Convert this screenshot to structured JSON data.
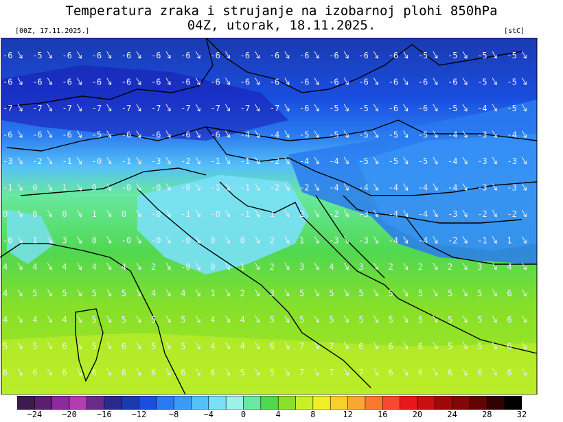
{
  "title": {
    "line1": "Temperatura zraka i strujanje na izobarnoj plohi 850hPa",
    "line2": "04Z, utorak, 18.11.2025."
  },
  "run_label": "[00Z, 17.11.2025.]",
  "unit_label": "[stC]",
  "legend": {
    "colors": [
      "#3c1a4e",
      "#5a1f6e",
      "#8a2a9e",
      "#b03cb0",
      "#6a2a8a",
      "#2a2a8e",
      "#1a3ab0",
      "#1a4ee0",
      "#2a7af0",
      "#3a9af8",
      "#56c0f8",
      "#7ae0f8",
      "#a0f0e8",
      "#68e8a0",
      "#50d850",
      "#88e028",
      "#c8f028",
      "#f0f028",
      "#f8d028",
      "#f8a830",
      "#f87830",
      "#f84830",
      "#e81818",
      "#c81010",
      "#a00808",
      "#800808",
      "#600404",
      "#300202",
      "#000000"
    ],
    "ticks": [
      "−24",
      "−20",
      "−16",
      "−12",
      "−8",
      "−4",
      "0",
      "4",
      "8",
      "12",
      "16",
      "20",
      "24",
      "28",
      "32"
    ]
  },
  "map": {
    "rows": [
      [
        "-6",
        "-5",
        "-6",
        "-6",
        "-6",
        "-6",
        "-6",
        "-6",
        "-6",
        "-6",
        "-6",
        "-6",
        "-6",
        "-6",
        "-5",
        "-5",
        "-5",
        "-5"
      ],
      [
        "-6",
        "-6",
        "-6",
        "-6",
        "-6",
        "-6",
        "-6",
        "-6",
        "-6",
        "-6",
        "-6",
        "-6",
        "-6",
        "-6",
        "-6",
        "-6",
        "-5",
        "-5"
      ],
      [
        "-7",
        "-7",
        "-7",
        "-7",
        "-7",
        "-7",
        "-7",
        "-7",
        "-7",
        "-7",
        "-6",
        "-5",
        "-5",
        "-6",
        "-6",
        "-5",
        "-4",
        "-5"
      ],
      [
        "-6",
        "-6",
        "-6",
        "-5",
        "-6",
        "-6",
        "-6",
        "-6",
        "-4",
        "-4",
        "-5",
        "-5",
        "-5",
        "-5",
        "-5",
        "-4",
        "-3",
        "-4"
      ],
      [
        "-3",
        "-2",
        "-1",
        "-0",
        "-1",
        "-3",
        "-2",
        "-1",
        "-1",
        "-2",
        "-4",
        "-4",
        "-5",
        "-5",
        "-5",
        "-4",
        "-3",
        "-3"
      ],
      [
        "-1",
        "0",
        "1",
        "0",
        "-0",
        "-0",
        "-0",
        "-1",
        "-1",
        "-2",
        "-2",
        "-4",
        "-4",
        "-4",
        "-4",
        "-4",
        "-3",
        "-3"
      ],
      [
        "0",
        "0",
        "0",
        "1",
        "0",
        "-0",
        "-1",
        "-0",
        "-1",
        "1",
        "2",
        "-2",
        "-3",
        "-4",
        "-4",
        "-3",
        "-2",
        "-2"
      ],
      [
        "-0",
        "1",
        "3",
        "0",
        "-0",
        "-0",
        "-0",
        "0",
        "0",
        "2",
        "1",
        "-3",
        "-3",
        "-4",
        "-4",
        "-2",
        "-1",
        "1"
      ],
      [
        "4",
        "4",
        "4",
        "4",
        "4",
        "2",
        "-0",
        "0",
        "1",
        "2",
        "3",
        "4",
        "3",
        "2",
        "2",
        "2",
        "3",
        "4"
      ],
      [
        "4",
        "5",
        "5",
        "5",
        "5",
        "4",
        "4",
        "1",
        "2",
        "3",
        "5",
        "5",
        "5",
        "5",
        "5",
        "5",
        "5",
        "6"
      ],
      [
        "4",
        "4",
        "4",
        "5",
        "5",
        "5",
        "5",
        "4",
        "4",
        "5",
        "5",
        "5",
        "5",
        "5",
        "5",
        "5",
        "5",
        "6"
      ],
      [
        "5",
        "5",
        "6",
        "5",
        "6",
        "5",
        "5",
        "4",
        "4",
        "6",
        "7",
        "7",
        "6",
        "6",
        "6",
        "5",
        "5",
        "6"
      ],
      [
        "6",
        "6",
        "6",
        "6",
        "6",
        "6",
        "6",
        "6",
        "5",
        "5",
        "7",
        "7",
        "7",
        "6",
        "6",
        "6",
        "6",
        "6"
      ]
    ]
  }
}
